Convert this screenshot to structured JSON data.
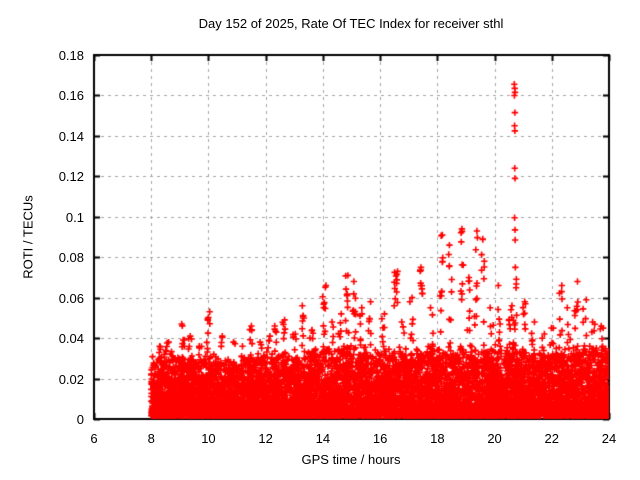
{
  "chart_data": {
    "type": "scatter",
    "title": "Day 152 of 2025, Rate Of TEC Index for receiver sthl",
    "xlabel": "GPS time / hours",
    "ylabel": "ROTI / TECUs",
    "series_name": "ROTI",
    "marker": "+",
    "marker_color": "#ff0000",
    "grid_color": "#a6a6a6",
    "axis_color": "#000000",
    "grid": "dashed, at every major tick",
    "legend": "none",
    "xlim": [
      6,
      24
    ],
    "ylim": [
      0,
      0.18
    ],
    "x_ticks": [
      "6",
      "8",
      "10",
      "12",
      "14",
      "16",
      "18",
      "20",
      "22",
      "24"
    ],
    "y_ticks": [
      "0",
      "0.02",
      "0.04",
      "0.06",
      "0.08",
      "0.1",
      "0.12",
      "0.14",
      "0.16",
      "0.18"
    ],
    "data_coverage_hours": [
      8,
      24
    ],
    "baseline_band": {
      "description": "dense quasi-continuous band of + markers from ~0.002 up to ~0.03 TECU between 08:00 and 24:00",
      "y_min": 0.0015,
      "typical_top": 0.03,
      "points": 9500,
      "power": 2.1,
      "seed": 1152
    },
    "band_envelope": {
      "hours": [
        8,
        8.5,
        9,
        9.5,
        10,
        10.5,
        11,
        11.5,
        12,
        12.5,
        13,
        13.5,
        14,
        14.5,
        15,
        15.5,
        16,
        16.5,
        17,
        17.5,
        18,
        18.5,
        19,
        19.5,
        20,
        20.5,
        21,
        21.5,
        22,
        22.5,
        23,
        23.5,
        24
      ],
      "top": [
        0.029,
        0.031,
        0.03,
        0.029,
        0.031,
        0.028,
        0.029,
        0.031,
        0.029,
        0.031,
        0.03,
        0.032,
        0.034,
        0.033,
        0.035,
        0.033,
        0.031,
        0.034,
        0.032,
        0.033,
        0.034,
        0.033,
        0.034,
        0.033,
        0.034,
        0.035,
        0.033,
        0.031,
        0.032,
        0.033,
        0.034,
        0.034,
        0.033
      ]
    },
    "spike_clusters": [
      [
        8.3,
        0.036,
        6
      ],
      [
        8.55,
        0.038,
        6
      ],
      [
        9.1,
        0.047,
        10
      ],
      [
        9.35,
        0.041,
        7
      ],
      [
        9.7,
        0.036,
        5
      ],
      [
        10.0,
        0.053,
        9
      ],
      [
        10.45,
        0.041,
        6
      ],
      [
        10.9,
        0.038,
        5
      ],
      [
        11.2,
        0.036,
        5
      ],
      [
        11.5,
        0.046,
        8
      ],
      [
        11.85,
        0.038,
        5
      ],
      [
        12.1,
        0.041,
        6
      ],
      [
        12.35,
        0.046,
        7
      ],
      [
        12.65,
        0.049,
        8
      ],
      [
        13.0,
        0.042,
        6
      ],
      [
        13.3,
        0.056,
        9
      ],
      [
        13.6,
        0.044,
        6
      ],
      [
        14.05,
        0.066,
        11
      ],
      [
        14.35,
        0.048,
        7
      ],
      [
        14.6,
        0.052,
        8
      ],
      [
        14.85,
        0.071,
        12
      ],
      [
        15.1,
        0.068,
        11
      ],
      [
        15.35,
        0.055,
        8
      ],
      [
        15.65,
        0.058,
        8
      ],
      [
        16.1,
        0.052,
        7
      ],
      [
        16.55,
        0.073,
        12
      ],
      [
        16.8,
        0.048,
        6
      ],
      [
        17.1,
        0.06,
        8
      ],
      [
        17.45,
        0.075,
        10
      ],
      [
        17.8,
        0.055,
        7
      ],
      [
        18.15,
        0.091,
        12
      ],
      [
        18.45,
        0.086,
        10
      ],
      [
        18.85,
        0.094,
        12
      ],
      [
        19.1,
        0.07,
        8
      ],
      [
        19.35,
        0.093,
        11
      ],
      [
        19.6,
        0.089,
        9
      ],
      [
        19.9,
        0.055,
        6
      ],
      [
        20.15,
        0.066,
        8
      ],
      [
        20.55,
        0.056,
        7
      ],
      [
        20.72,
        0.075,
        10
      ],
      [
        21.05,
        0.058,
        7
      ],
      [
        21.35,
        0.048,
        6
      ],
      [
        21.7,
        0.042,
        5
      ],
      [
        22.0,
        0.045,
        6
      ],
      [
        22.3,
        0.066,
        10
      ],
      [
        22.6,
        0.055,
        7
      ],
      [
        22.85,
        0.068,
        10
      ],
      [
        23.15,
        0.059,
        7
      ],
      [
        23.45,
        0.048,
        6
      ],
      [
        23.75,
        0.046,
        6
      ]
    ],
    "outlier_points": [
      [
        20.69,
        0.1655
      ],
      [
        20.705,
        0.1635
      ],
      [
        20.715,
        0.1615
      ],
      [
        20.695,
        0.16
      ],
      [
        20.71,
        0.1515
      ],
      [
        20.7,
        0.145
      ],
      [
        20.71,
        0.1425
      ],
      [
        20.705,
        0.124
      ],
      [
        20.715,
        0.119
      ],
      [
        20.7,
        0.0995
      ],
      [
        20.715,
        0.0935
      ],
      [
        20.72,
        0.0885
      ]
    ]
  }
}
